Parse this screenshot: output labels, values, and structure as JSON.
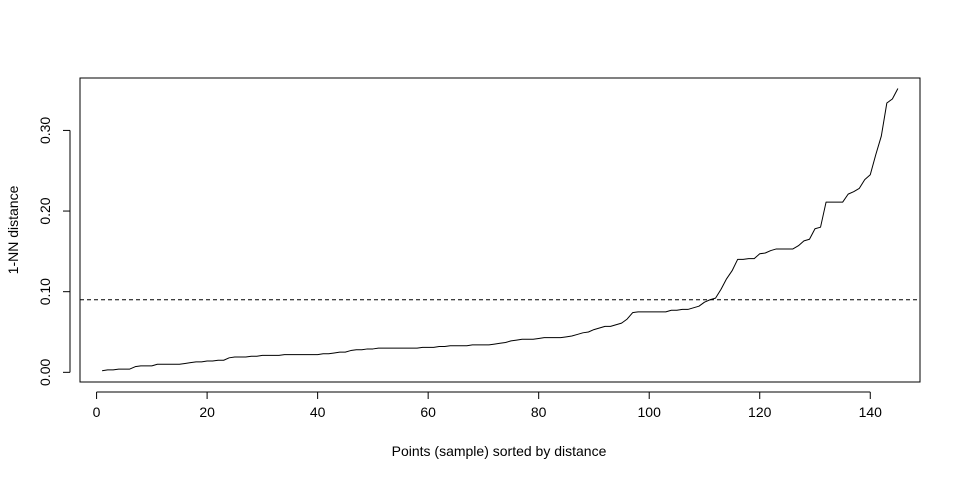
{
  "chart_data": {
    "type": "line",
    "title": "",
    "xlabel": "Points (sample) sorted by distance",
    "ylabel": "1-NN distance",
    "xlim": [
      -3,
      149
    ],
    "ylim": [
      -0.012,
      0.365
    ],
    "x_ticks": [
      0,
      20,
      40,
      60,
      80,
      100,
      120,
      140
    ],
    "x_tick_labels": [
      "0",
      "20",
      "40",
      "60",
      "80",
      "100",
      "120",
      "140"
    ],
    "y_ticks": [
      0.0,
      0.1,
      0.2,
      0.3
    ],
    "y_tick_labels": [
      "0.00",
      "0.10",
      "0.20",
      "0.30"
    ],
    "grid": false,
    "line_color": "#000000",
    "series": [
      {
        "x": [
          1,
          2,
          3,
          4,
          5,
          6,
          7,
          8,
          9,
          10,
          11,
          12,
          13,
          14,
          15,
          16,
          17,
          18,
          19,
          20,
          21,
          22,
          23,
          24,
          25,
          26,
          27,
          28,
          29,
          30,
          31,
          32,
          33,
          34,
          35,
          36,
          37,
          38,
          39,
          40,
          41,
          42,
          43,
          44,
          45,
          46,
          47,
          48,
          49,
          50,
          51,
          52,
          53,
          54,
          55,
          56,
          57,
          58,
          59,
          60,
          61,
          62,
          63,
          64,
          65,
          66,
          67,
          68,
          69,
          70,
          71,
          72,
          73,
          74,
          75,
          76,
          77,
          78,
          79,
          80,
          81,
          82,
          83,
          84,
          85,
          86,
          87,
          88,
          89,
          90,
          91,
          92,
          93,
          94,
          95,
          96,
          97,
          98,
          99,
          100,
          101,
          102,
          103,
          104,
          105,
          106,
          107,
          108,
          109,
          110,
          111,
          112,
          113,
          114,
          115,
          116,
          117,
          118,
          119,
          120,
          121,
          122,
          123,
          124,
          125,
          126,
          127,
          128,
          129,
          130,
          131,
          132,
          133,
          134,
          135,
          136,
          137,
          138,
          139,
          140,
          141,
          142,
          143,
          144,
          145
        ],
        "values": [
          0.002,
          0.003,
          0.003,
          0.004,
          0.004,
          0.004,
          0.007,
          0.008,
          0.008,
          0.008,
          0.01,
          0.01,
          0.01,
          0.01,
          0.01,
          0.011,
          0.012,
          0.013,
          0.013,
          0.014,
          0.014,
          0.015,
          0.015,
          0.018,
          0.019,
          0.019,
          0.019,
          0.02,
          0.02,
          0.021,
          0.021,
          0.021,
          0.021,
          0.022,
          0.022,
          0.022,
          0.022,
          0.022,
          0.022,
          0.022,
          0.023,
          0.023,
          0.024,
          0.025,
          0.025,
          0.027,
          0.028,
          0.028,
          0.029,
          0.029,
          0.03,
          0.03,
          0.03,
          0.03,
          0.03,
          0.03,
          0.03,
          0.03,
          0.031,
          0.031,
          0.031,
          0.032,
          0.032,
          0.033,
          0.033,
          0.033,
          0.033,
          0.034,
          0.034,
          0.034,
          0.034,
          0.035,
          0.036,
          0.037,
          0.039,
          0.04,
          0.041,
          0.041,
          0.041,
          0.042,
          0.043,
          0.043,
          0.043,
          0.043,
          0.044,
          0.045,
          0.047,
          0.049,
          0.05,
          0.053,
          0.055,
          0.057,
          0.057,
          0.059,
          0.061,
          0.066,
          0.074,
          0.075,
          0.075,
          0.075,
          0.075,
          0.075,
          0.075,
          0.077,
          0.077,
          0.078,
          0.078,
          0.08,
          0.082,
          0.087,
          0.09,
          0.092,
          0.103,
          0.116,
          0.126,
          0.14,
          0.14,
          0.141,
          0.141,
          0.147,
          0.148,
          0.151,
          0.153,
          0.153,
          0.153,
          0.153,
          0.157,
          0.163,
          0.165,
          0.178,
          0.18,
          0.211,
          0.211,
          0.211,
          0.211,
          0.221,
          0.224,
          0.228,
          0.239,
          0.245,
          0.27,
          0.293,
          0.334,
          0.339,
          0.352
        ]
      }
    ],
    "reference_lines": [
      {
        "orientation": "horizontal",
        "y": 0.09,
        "style": "dashed"
      }
    ]
  }
}
